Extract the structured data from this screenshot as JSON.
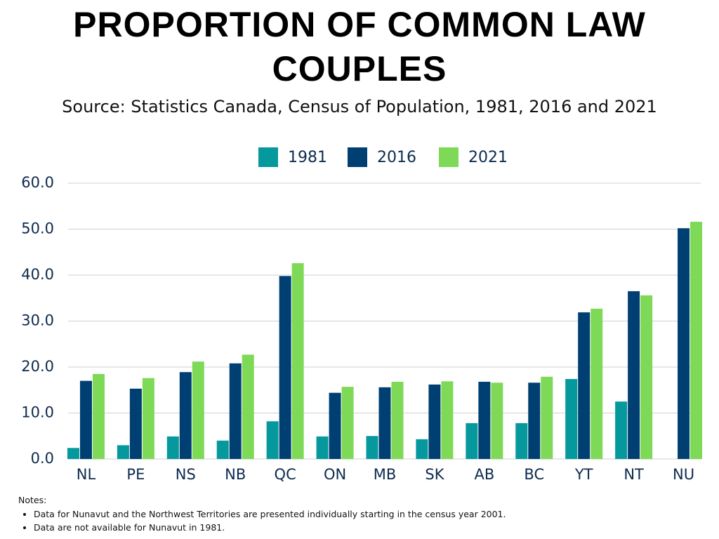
{
  "chart_data": {
    "type": "bar",
    "title": "PROPORTION OF COMMON LAW COUPLES",
    "subtitle": "Source: Statistics Canada, Census of Population, 1981, 2016 and 2021",
    "categories": [
      "NL",
      "PE",
      "NS",
      "NB",
      "QC",
      "ON",
      "MB",
      "SK",
      "AB",
      "BC",
      "YT",
      "NT",
      "NU"
    ],
    "series": [
      {
        "name": "1981",
        "color": "#05999e",
        "values": [
          2.4,
          3.0,
          4.9,
          4.0,
          8.2,
          4.9,
          5.0,
          4.3,
          7.8,
          7.8,
          17.4,
          12.5,
          null
        ]
      },
      {
        "name": "2016",
        "color": "#003f72",
        "values": [
          17.0,
          15.3,
          18.9,
          20.8,
          39.8,
          14.4,
          15.6,
          16.2,
          16.8,
          16.6,
          31.9,
          36.5,
          50.2
        ]
      },
      {
        "name": "2021",
        "color": "#7ed957",
        "values": [
          18.5,
          17.6,
          21.2,
          22.7,
          42.6,
          15.7,
          16.8,
          16.9,
          16.6,
          17.9,
          32.7,
          35.6,
          51.6
        ]
      }
    ],
    "ylim": [
      0,
      60
    ],
    "yticks": [
      {
        "value": 0,
        "label": "0.0"
      },
      {
        "value": 10,
        "label": "10.0"
      },
      {
        "value": 20,
        "label": "20.0"
      },
      {
        "value": 30,
        "label": "30.0"
      },
      {
        "value": 40,
        "label": "40.0"
      },
      {
        "value": 50,
        "label": "50.0"
      },
      {
        "value": 60,
        "label": "60.0"
      }
    ],
    "grid": true,
    "legend": "top",
    "notes": {
      "heading": "Notes:",
      "items": [
        "Data for Nunavut and the Northwest Territories are presented individually starting in the census year 2001.",
        "Data are not available for Nunavut in 1981."
      ]
    }
  }
}
